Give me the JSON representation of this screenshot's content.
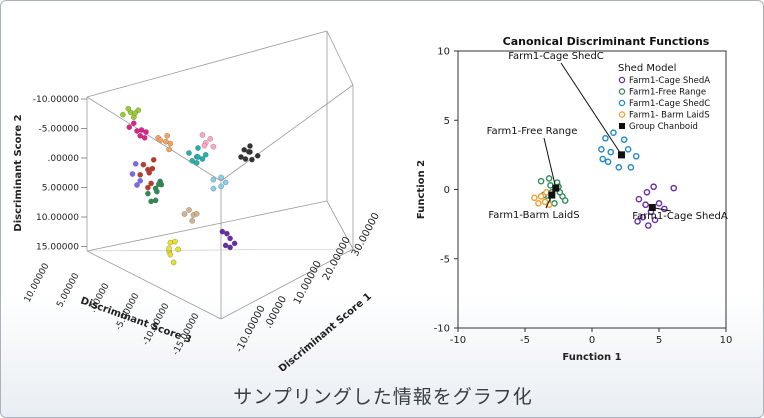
{
  "caption": "サンプリングした情報をグラフ化",
  "chart_data": [
    {
      "type": "scatter",
      "variant": "3d",
      "title": "",
      "axes": {
        "y": {
          "label": "Discriminant Score 2",
          "ticks": [
            "-10.00000",
            "-5.00000",
            ".00000",
            "5.00000",
            "10.00000",
            "15.00000"
          ],
          "range": [
            -10,
            15
          ],
          "direction": "reversed"
        },
        "x": {
          "label": "Discriminant Score 1",
          "ticks": [
            "-10.00000",
            ".00000",
            "10.00000",
            "20.00000",
            "30.00000"
          ],
          "range": [
            -10,
            30
          ]
        },
        "z": {
          "label": "Discriminant Score 3",
          "ticks": [
            "10.00000",
            "5.00000",
            ".00000",
            "-5.00000",
            "-10.00000",
            "-15.00000"
          ],
          "range": [
            10,
            -15
          ]
        }
      },
      "clusters": [
        {
          "color": "#9acd32",
          "points": [
            [
              -6,
              -9.5,
              2
            ],
            [
              -5,
              -10,
              1
            ],
            [
              -7,
              -9,
              3
            ],
            [
              -6,
              -9,
              1
            ],
            [
              -5,
              -9.2,
              2
            ],
            [
              -6.5,
              -10.2,
              2
            ]
          ]
        },
        {
          "color": "#e0218a",
          "points": [
            [
              -6,
              -7,
              0
            ],
            [
              -5,
              -6,
              -1
            ],
            [
              -7,
              -7.5,
              1
            ],
            [
              -6,
              -6.5,
              -1
            ],
            [
              -5,
              -7,
              0
            ],
            [
              -4,
              -6.5,
              0
            ],
            [
              -6,
              -8,
              1
            ]
          ]
        },
        {
          "color": "#f4a460",
          "points": [
            [
              -1,
              -5,
              -2
            ],
            [
              0,
              -4.5,
              -2
            ],
            [
              -2,
              -5.5,
              -1
            ],
            [
              -1,
              -4,
              -3
            ],
            [
              0,
              -5.5,
              -1
            ],
            [
              -1.5,
              -5,
              -1
            ]
          ]
        },
        {
          "color": "#20b2aa",
          "points": [
            [
              3,
              -3,
              -6
            ],
            [
              4,
              -2.5,
              -5
            ],
            [
              2,
              -3.5,
              -5
            ],
            [
              5,
              -3,
              -6
            ],
            [
              3,
              -2,
              -6
            ],
            [
              4,
              -4,
              -5
            ],
            [
              2,
              -2.5,
              -6
            ],
            [
              5,
              -2,
              -5
            ]
          ]
        },
        {
          "color": "#ffa6c9",
          "points": [
            [
              5,
              -5,
              -6
            ],
            [
              6,
              -5.5,
              -6
            ],
            [
              4,
              -5,
              -7
            ],
            [
              5,
              -6,
              -5
            ],
            [
              6,
              -4.5,
              -7
            ]
          ]
        },
        {
          "color": "#333333",
          "points": [
            [
              10,
              -3,
              -10
            ],
            [
              11,
              -4,
              -11
            ],
            [
              12,
              -3.5,
              -10
            ],
            [
              10,
              -4.5,
              -11
            ],
            [
              11,
              -2.5,
              -10
            ],
            [
              12,
              -4.5,
              -10
            ],
            [
              13,
              -3,
              -11
            ],
            [
              11,
              -3,
              -12
            ]
          ]
        },
        {
          "color": "#c0392b",
          "points": [
            [
              -5,
              -1,
              -2
            ],
            [
              -4,
              0,
              -1
            ],
            [
              -6,
              -2,
              -2
            ],
            [
              -5,
              1,
              -3
            ],
            [
              -4,
              -1,
              -2
            ],
            [
              -6,
              0,
              -1
            ],
            [
              -3,
              -2,
              -1
            ],
            [
              -5,
              2,
              -2
            ]
          ]
        },
        {
          "color": "#2e8b57",
          "points": [
            [
              -4,
              2,
              -3
            ],
            [
              -3,
              3,
              -2
            ],
            [
              -5,
              3,
              -2
            ],
            [
              -4,
              4,
              -3
            ],
            [
              -3,
              1,
              -3
            ],
            [
              -2,
              2,
              -2
            ],
            [
              -4,
              1,
              -4
            ],
            [
              -5,
              4,
              -3
            ]
          ]
        },
        {
          "color": "#7b68ee",
          "points": [
            [
              -7,
              -2,
              -1
            ],
            [
              -6,
              1,
              -1
            ],
            [
              -7,
              0,
              0
            ],
            [
              -6,
              2,
              0
            ]
          ]
        },
        {
          "color": "#87ceeb",
          "points": [
            [
              6,
              1,
              -7
            ],
            [
              7,
              2,
              -8
            ],
            [
              6,
              2.5,
              -7
            ],
            [
              7,
              0.5,
              -8
            ],
            [
              8,
              1.5,
              -8
            ]
          ]
        },
        {
          "color": "#d2b48c",
          "points": [
            [
              2,
              6,
              -5
            ],
            [
              3,
              7,
              -5
            ],
            [
              2,
              7.5,
              -6
            ],
            [
              3,
              6.5,
              -6
            ],
            [
              1,
              6.5,
              -5
            ]
          ]
        },
        {
          "color": "#6a2ca6",
          "points": [
            [
              8,
              10,
              -7
            ],
            [
              9,
              11,
              -8
            ],
            [
              8,
              12,
              -8
            ],
            [
              9,
              10.5,
              -7
            ],
            [
              10,
              12,
              -8
            ],
            [
              9,
              12.5,
              -8
            ]
          ]
        },
        {
          "color": "#e8e02a",
          "points": [
            [
              0,
              12,
              -2
            ],
            [
              1,
              13,
              -3
            ],
            [
              -1,
              13,
              -3
            ],
            [
              0,
              14,
              -2
            ],
            [
              1,
              12,
              -2
            ],
            [
              -1,
              12.5,
              -3
            ],
            [
              0,
              15,
              -3
            ]
          ]
        }
      ]
    },
    {
      "type": "scatter",
      "title": "Canonical Discriminant Functions",
      "xlabel": "Function 1",
      "ylabel": "Function 2",
      "xlim": [
        -10,
        10
      ],
      "ylim": [
        -10,
        10
      ],
      "xticks": [
        -10,
        -5,
        0,
        5,
        10
      ],
      "yticks": [
        -10,
        -5,
        0,
        5,
        10
      ],
      "legend": {
        "title": "Shed Model",
        "position": "top-right",
        "items": [
          {
            "label": "Farm1-Cage ShedA",
            "marker": "circle",
            "color": "#6a2ca6"
          },
          {
            "label": "Farm1-Free Range",
            "marker": "circle",
            "color": "#2e8b57"
          },
          {
            "label": "Farm1-Cage ShedC",
            "marker": "circle",
            "color": "#1e88c8"
          },
          {
            "label": "Farm1- Barm LaidS",
            "marker": "circle",
            "color": "#f0a030"
          },
          {
            "label": "Group Chanboid",
            "marker": "square",
            "color": "#111111"
          }
        ]
      },
      "series": [
        {
          "name": "Farm1-Cage ShedA",
          "color": "#6a2ca6",
          "points": [
            [
              4.1,
              -0.2
            ],
            [
              4.6,
              0.2
            ],
            [
              3.5,
              -0.7
            ],
            [
              4.0,
              -1.1
            ],
            [
              5.0,
              -1.0
            ],
            [
              4.4,
              -1.6
            ],
            [
              3.8,
              -2.0
            ],
            [
              4.7,
              -2.2
            ],
            [
              5.4,
              -1.4
            ],
            [
              4.2,
              -2.6
            ],
            [
              6.1,
              0.1
            ],
            [
              3.4,
              -2.3
            ]
          ]
        },
        {
          "name": "Farm1-Free Range",
          "color": "#2e8b57",
          "points": [
            [
              -3.8,
              0.6
            ],
            [
              -3.2,
              0.8
            ],
            [
              -2.6,
              0.5
            ],
            [
              -3.0,
              -0.2
            ],
            [
              -2.2,
              -0.5
            ],
            [
              -3.6,
              -0.4
            ],
            [
              -2.8,
              -1.0
            ],
            [
              -2.0,
              -0.8
            ],
            [
              -3.3,
              -0.8
            ],
            [
              -2.5,
              0.2
            ],
            [
              -3.1,
              0.3
            ],
            [
              -2.4,
              -0.2
            ]
          ]
        },
        {
          "name": "Farm1-Cage ShedC",
          "color": "#1e88c8",
          "points": [
            [
              1.0,
              3.7
            ],
            [
              1.6,
              4.1
            ],
            [
              2.4,
              3.6
            ],
            [
              0.7,
              2.9
            ],
            [
              1.4,
              2.7
            ],
            [
              2.7,
              2.9
            ],
            [
              3.3,
              2.4
            ],
            [
              1.2,
              2.0
            ],
            [
              2.0,
              1.6
            ],
            [
              2.9,
              1.6
            ],
            [
              0.8,
              2.2
            ]
          ]
        },
        {
          "name": "Farm1- Barm LaidS",
          "color": "#f0a030",
          "points": [
            [
              -4.3,
              -0.6
            ],
            [
              -3.8,
              -0.5
            ],
            [
              -3.5,
              -0.9
            ],
            [
              -4.0,
              -1.0
            ],
            [
              -3.2,
              -1.1
            ],
            [
              -3.4,
              -0.2
            ]
          ]
        },
        {
          "name": "Group Chanboid",
          "color": "#111111",
          "marker": "square",
          "points": [
            [
              4.5,
              -1.3
            ],
            [
              -2.7,
              0.1
            ],
            [
              2.2,
              2.5
            ],
            [
              -3.0,
              -0.4
            ]
          ]
        }
      ],
      "annotations": [
        {
          "text": "Farm1-Cage ShedC"
        },
        {
          "text": "Farm1-Free Range"
        },
        {
          "text": "Farm1-Barm LaidS"
        },
        {
          "text": "Farm1-Cage ShedA"
        }
      ]
    }
  ]
}
